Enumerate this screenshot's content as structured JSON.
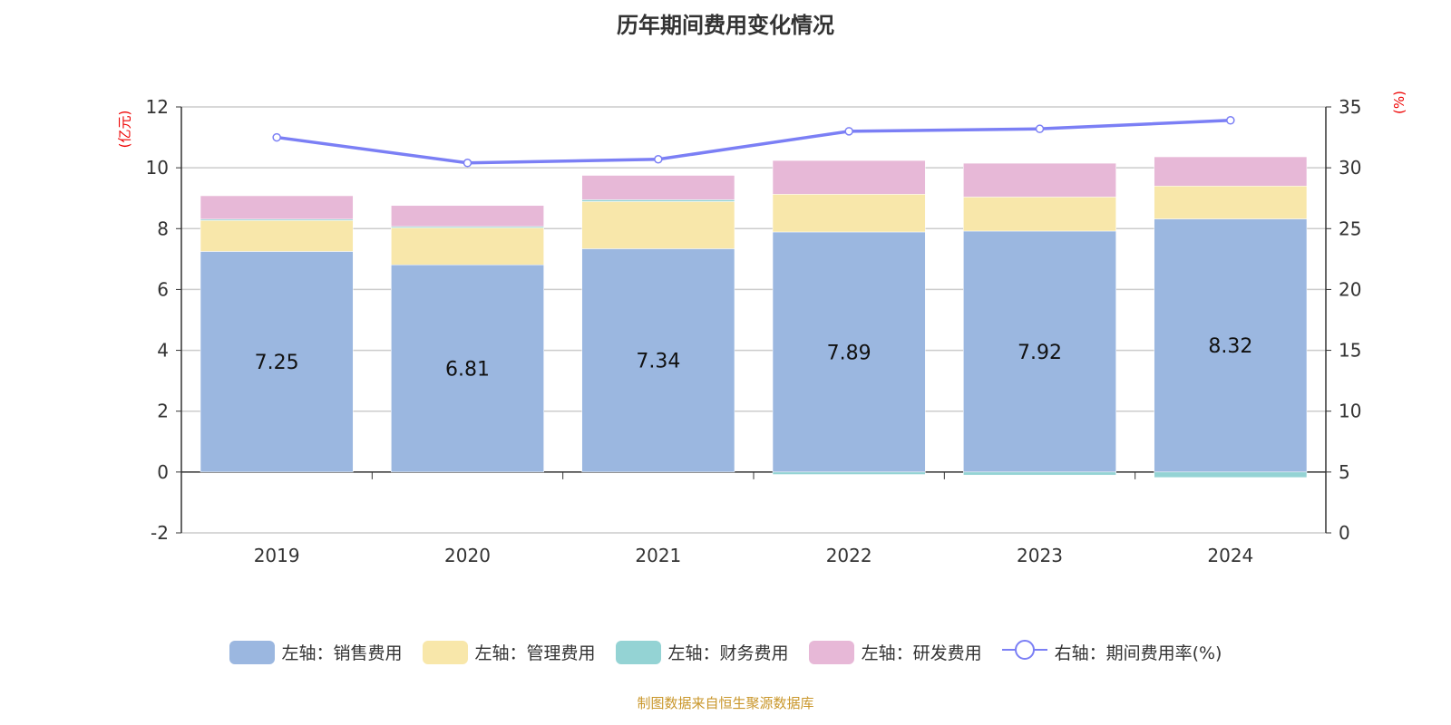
{
  "chart_data": {
    "type": "bar",
    "title": "历年期间费用变化情况",
    "categories": [
      "2019",
      "2020",
      "2021",
      "2022",
      "2023",
      "2024"
    ],
    "left_axis": {
      "label": "(亿元)",
      "range": [
        -2,
        12
      ],
      "ticks": [
        -2,
        0,
        2,
        4,
        6,
        8,
        10,
        12
      ]
    },
    "right_axis": {
      "label": "(%)",
      "range": [
        0,
        35
      ],
      "ticks": [
        0,
        5,
        10,
        15,
        20,
        25,
        30,
        35
      ]
    },
    "series": [
      {
        "name": "左轴：销售费用",
        "type": "bar",
        "color": "#9bb7e0",
        "values": [
          7.25,
          6.81,
          7.34,
          7.89,
          7.92,
          8.32
        ],
        "labels": [
          "7.25",
          "6.81",
          "7.34",
          "7.89",
          "7.92",
          "8.32"
        ]
      },
      {
        "name": "左轴：管理费用",
        "type": "bar",
        "color": "#f8e7aa",
        "values": [
          1.05,
          1.25,
          1.55,
          1.24,
          1.12,
          1.08
        ]
      },
      {
        "name": "左轴：财务费用",
        "type": "bar",
        "color": "#94d3d4",
        "values": [
          0.01,
          0.01,
          0.06,
          -0.08,
          -0.1,
          -0.18
        ]
      },
      {
        "name": "左轴：研发费用",
        "type": "bar",
        "color": "#e7b8d7",
        "values": [
          0.77,
          0.69,
          0.8,
          1.11,
          1.11,
          0.96
        ]
      },
      {
        "name": "右轴：期间费用率(%)",
        "type": "line",
        "color": "#7b7ff5",
        "values": [
          32.5,
          30.4,
          30.7,
          33.0,
          33.2,
          33.9
        ]
      }
    ],
    "legend_position": "bottom",
    "grid": true
  },
  "source": "制图数据来自恒生聚源数据库"
}
